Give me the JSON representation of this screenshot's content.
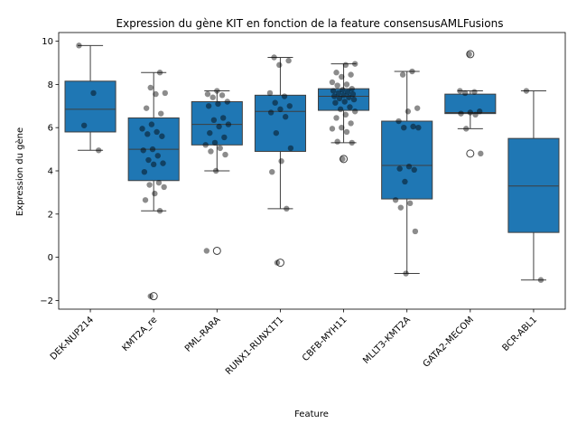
{
  "chart_data": {
    "type": "box",
    "title": "Expression du gène KIT en fonction de la feature consensusAMLFusions",
    "xlabel": "Feature",
    "ylabel": "Expression du gène",
    "ylim": [
      -2.4,
      10.4
    ],
    "yticks": [
      -2,
      0,
      2,
      4,
      6,
      8,
      10
    ],
    "grid": false,
    "box_color": "#1f77b4",
    "point_color": "#000000",
    "categories": [
      "DEK-NUP214",
      "KMT2A_re",
      "PML-RARA",
      "RUNX1-RUNX1T1",
      "CBFB-MYH11",
      "MLLT3-KMT2A",
      "GATA2-MECOM",
      "BCR-ABL1"
    ],
    "boxes": [
      {
        "category": "DEK-NUP214",
        "q1": 5.8,
        "median": 6.85,
        "q3": 8.15,
        "whisker_low": 4.95,
        "whisker_high": 9.8,
        "outliers": []
      },
      {
        "category": "KMT2A_re",
        "q1": 3.55,
        "median": 5.0,
        "q3": 6.45,
        "whisker_low": 2.15,
        "whisker_high": 8.55,
        "outliers": [
          -1.8
        ]
      },
      {
        "category": "PML-RARA",
        "q1": 5.2,
        "median": 6.15,
        "q3": 7.2,
        "whisker_low": 4.0,
        "whisker_high": 7.7,
        "outliers": [
          0.3
        ]
      },
      {
        "category": "RUNX1-RUNX1T1",
        "q1": 4.9,
        "median": 6.75,
        "q3": 7.5,
        "whisker_low": 2.25,
        "whisker_high": 9.25,
        "outliers": [
          -0.25
        ]
      },
      {
        "category": "CBFB-MYH11",
        "q1": 6.8,
        "median": 7.45,
        "q3": 7.8,
        "whisker_low": 5.3,
        "whisker_high": 8.95,
        "outliers": [
          4.55
        ]
      },
      {
        "category": "MLLT3-KMT2A",
        "q1": 2.7,
        "median": 4.25,
        "q3": 6.3,
        "whisker_low": -0.75,
        "whisker_high": 8.6,
        "outliers": []
      },
      {
        "category": "GATA2-MECOM",
        "q1": 6.65,
        "median": 6.7,
        "q3": 7.55,
        "whisker_low": 5.95,
        "whisker_high": 7.7,
        "outliers": [
          9.4,
          4.8
        ]
      },
      {
        "category": "BCR-ABL1",
        "q1": 1.15,
        "median": 3.3,
        "q3": 5.5,
        "whisker_low": -1.05,
        "whisker_high": 7.7,
        "outliers": []
      }
    ],
    "points": [
      [
        9.8,
        7.6,
        6.1,
        4.95
      ],
      [
        8.55,
        7.85,
        7.6,
        7.55,
        6.9,
        6.65,
        6.15,
        5.95,
        5.8,
        5.7,
        5.6,
        5.0,
        4.95,
        4.7,
        4.5,
        4.35,
        4.3,
        3.95,
        3.45,
        3.35,
        3.25,
        2.95,
        2.65,
        2.15,
        -1.8
      ],
      [
        7.7,
        7.55,
        7.5,
        7.4,
        7.2,
        7.1,
        7.0,
        6.45,
        6.35,
        6.15,
        6.05,
        5.75,
        5.55,
        5.3,
        5.2,
        5.05,
        4.9,
        4.75,
        4.0,
        0.3
      ],
      [
        9.25,
        9.1,
        8.9,
        7.6,
        7.45,
        7.15,
        7.0,
        6.85,
        6.7,
        6.5,
        5.75,
        5.05,
        4.45,
        3.95,
        2.25,
        -0.25
      ],
      [
        8.95,
        8.9,
        8.55,
        8.45,
        8.35,
        8.1,
        8.0,
        7.95,
        7.8,
        7.75,
        7.7,
        7.65,
        7.6,
        7.55,
        7.5,
        7.45,
        7.4,
        7.35,
        7.3,
        7.2,
        7.15,
        6.95,
        6.85,
        6.75,
        6.6,
        6.45,
        6.2,
        6.0,
        5.95,
        5.8,
        5.35,
        5.3,
        4.55
      ],
      [
        8.6,
        8.45,
        6.9,
        6.75,
        6.3,
        6.05,
        6.0,
        6.0,
        4.2,
        4.1,
        4.05,
        3.5,
        2.65,
        2.5,
        2.3,
        1.2,
        -0.75
      ],
      [
        9.4,
        7.7,
        7.65,
        7.6,
        6.75,
        6.7,
        6.65,
        6.6,
        5.95,
        4.8
      ],
      [
        7.7,
        -1.05
      ]
    ]
  }
}
